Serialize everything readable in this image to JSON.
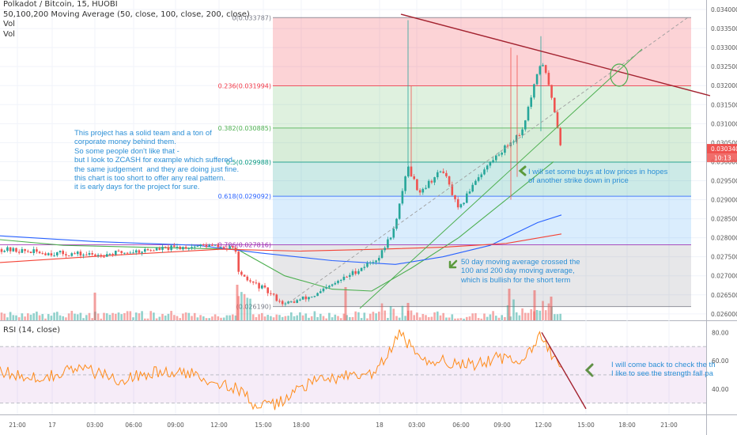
{
  "legend": {
    "title": "Polkadot / Bitcoin, 15, HUOBI",
    "ma_label": "50,100,200 Moving Average (50, close, 100, close, 200, close)",
    "vol1": "Vol",
    "vol2": "Vol"
  },
  "rsi_label": "RSI (14, close)",
  "notes": {
    "left": "This project has a solid team and a ton of\ncorporate money behind them.\nSo some people don't like that -\nbut I look to ZCASH for example which suffered\nthe same judgement  and they are doing just fine.\nthis chart is too short to offer any real pattern.\nit is early days for the project for sure.",
    "buy": "I will set some buys at low prices in hopes\nof another strike down in price",
    "ma": "50 day moving average crossed the\n100 and 200 day moving average,\nwhich is bullish for the short term",
    "rsi": "I will come back to check the th\nI like to see the strength fall pa"
  },
  "colors": {
    "up": "#26a69a",
    "down": "#ef5350",
    "ma50": "#4caf50",
    "ma100": "#2962ff",
    "ma200": "#f44336",
    "rsi": "#ff8c1a",
    "trend": "#a3222f",
    "note": "#2b8fd6",
    "arrow": "#5b9a3c"
  },
  "chart_data": {
    "type": "candlestick",
    "symbol": "Polkadot / Bitcoin, 15, HUOBI",
    "price_axis": {
      "ylim": [
        0.02583,
        0.03425
      ],
      "ticks": [
        0.026,
        0.0265,
        0.027,
        0.0275,
        0.028,
        0.0285,
        0.029,
        0.0295,
        0.03,
        0.0305,
        0.031,
        0.0315,
        0.032,
        0.0325,
        0.033,
        0.0335,
        0.034
      ],
      "tick_labels": [
        "0.026000",
        "0.026500",
        "0.027000",
        "0.027500",
        "0.028000",
        "0.028500",
        "0.029000",
        "0.029500",
        "0.030000",
        "0.030500",
        "0.031000",
        "0.031500",
        "0.032000",
        "0.032500",
        "0.033000",
        "0.033500",
        "0.034000"
      ],
      "last_price": "0.030340",
      "countdown": "10:13"
    },
    "time_axis": {
      "labels": [
        "21:00",
        "17",
        "03:00",
        "06:00",
        "09:00",
        "12:00",
        "15:00",
        "18:00",
        "18",
        "03:00",
        "06:00",
        "09:00",
        "12:00",
        "15:00",
        "18:00",
        "21:00"
      ]
    },
    "fibonacci": [
      {
        "ratio": 0,
        "price": 0.033787,
        "label": "0(0.033787)"
      },
      {
        "ratio": 0.236,
        "price": 0.031994,
        "label": "0.236(0.031994)"
      },
      {
        "ratio": 0.382,
        "price": 0.030885,
        "label": "0.382(0.030885)"
      },
      {
        "ratio": 0.5,
        "price": 0.029988,
        "label": "0.5(0.029988)"
      },
      {
        "ratio": 0.618,
        "price": 0.029092,
        "label": "0.618(0.029092)"
      },
      {
        "ratio": 0.786,
        "price": 0.027816,
        "label": "0.786(0.027816)"
      },
      {
        "ratio": 1,
        "price": 0.02619,
        "label": "(0.026190)"
      }
    ],
    "rsi": {
      "period": 14,
      "ylim": [
        22,
        88
      ],
      "ticks": [
        40,
        60,
        80
      ],
      "tick_labels": [
        "40.00",
        "60.00",
        "80.00"
      ],
      "bands": [
        30,
        70
      ]
    }
  }
}
